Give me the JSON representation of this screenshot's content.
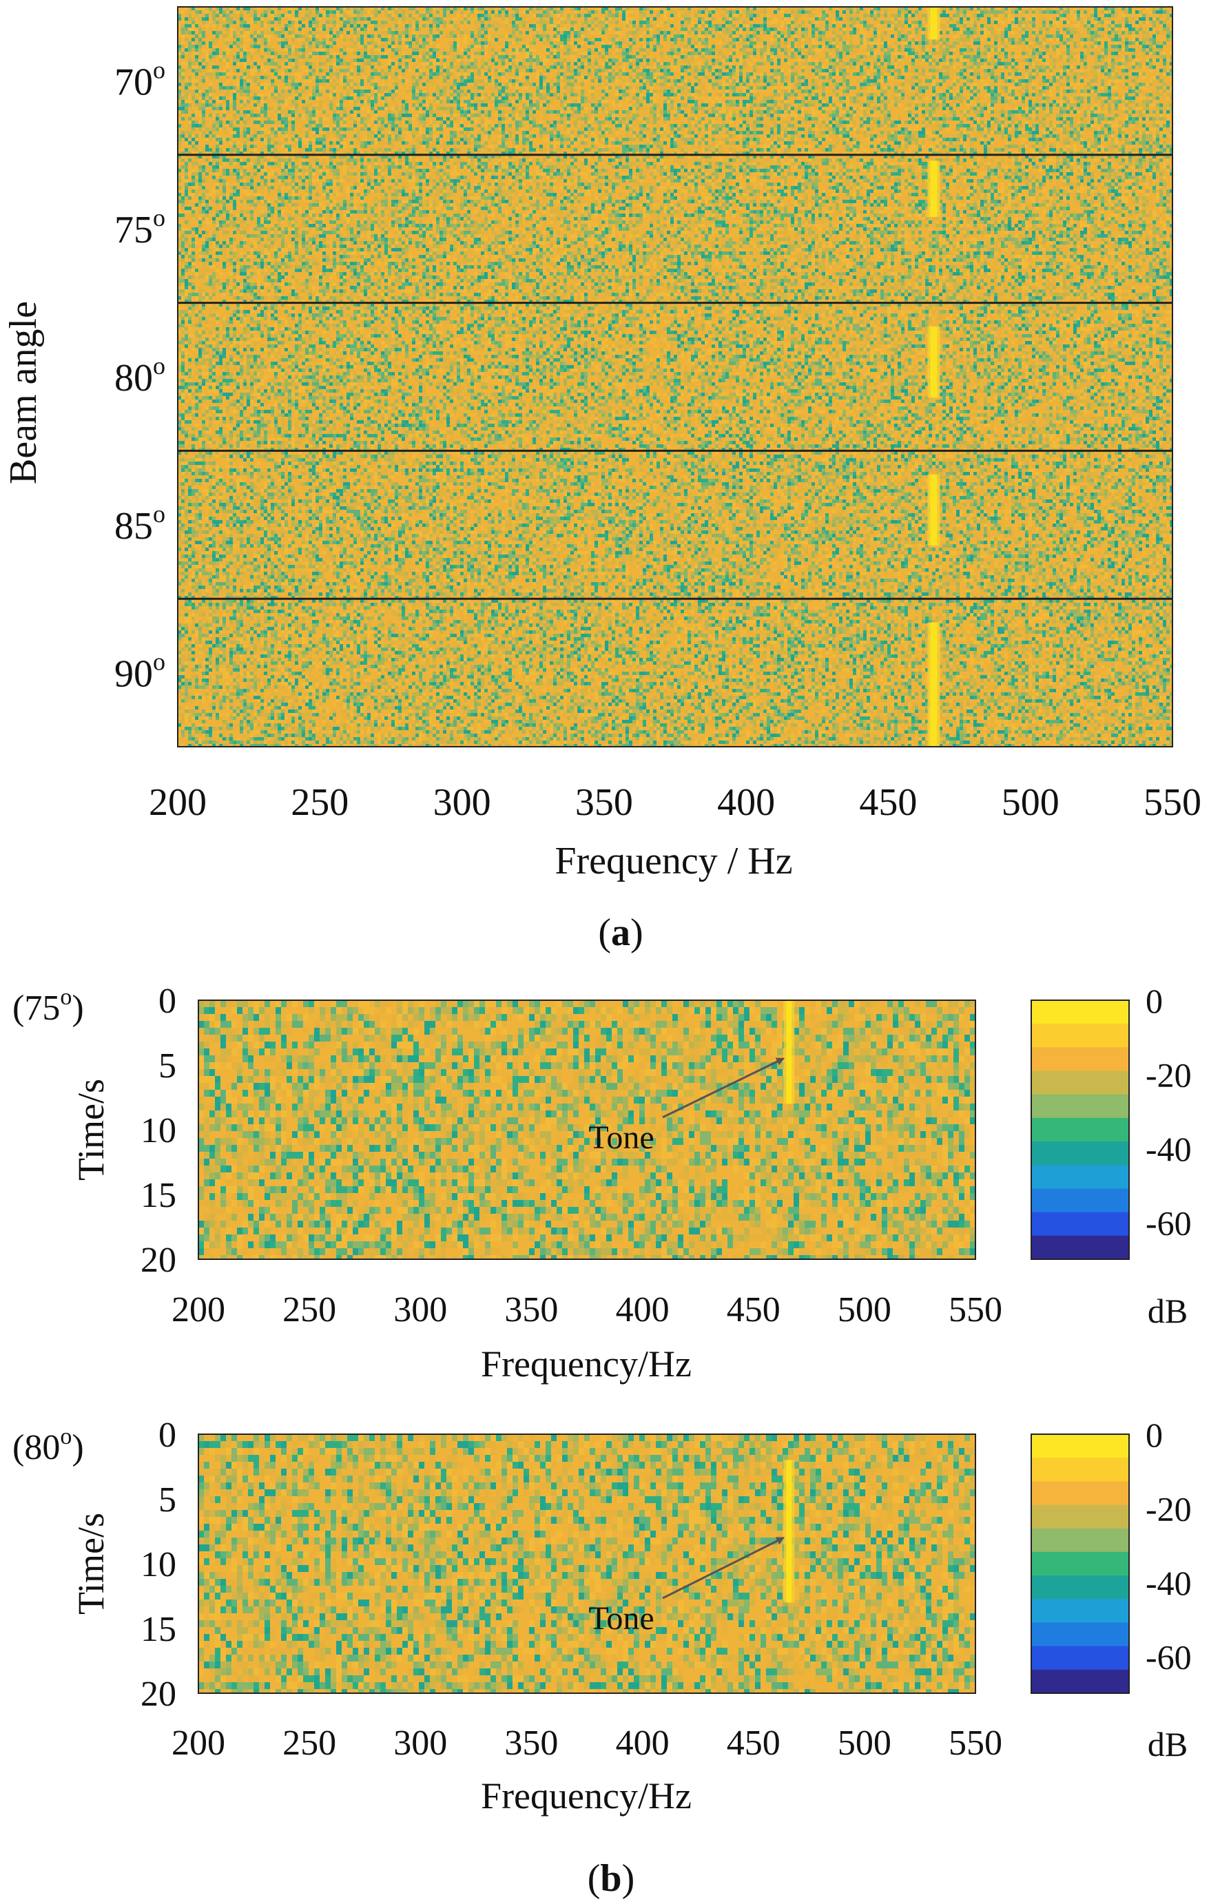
{
  "colors": {
    "noise": [
      "#f0b33a",
      "#e8b13b",
      "#d6b443",
      "#c0b44f",
      "#a6b55a",
      "#88b66a",
      "#5fb37a",
      "#2fae86",
      "#22a58f",
      "#f3ba3a"
    ],
    "tone": "#fbe21e",
    "tone_halo": "#f7cf30",
    "colorbar": [
      "#fde725",
      "#fbcd2f",
      "#f6b43c",
      "#c9b84e",
      "#8fbb6a",
      "#35b779",
      "#1ca49b",
      "#1ea0d6",
      "#1f7de0",
      "#2652e2",
      "#302a8f"
    ],
    "separator": "#222222",
    "arrow": "#555555"
  },
  "panel_a": {
    "label": "a",
    "chart_data": {
      "type": "heatmap",
      "title": "",
      "xlabel": "Frequency / Hz",
      "ylabel": "Beam angle",
      "xlim": [
        200,
        550
      ],
      "ylim": [
        67.5,
        92.5
      ],
      "x_ticks": [
        200,
        250,
        300,
        350,
        400,
        450,
        500,
        550
      ],
      "x_tick_labels": [
        "200",
        "250",
        "300",
        "350",
        "400",
        "450",
        "500",
        "550"
      ],
      "y_ticks": [
        70,
        75,
        80,
        85,
        90
      ],
      "y_tick_labels": [
        "70",
        "75",
        "80",
        "85",
        "90"
      ],
      "y_tick_suffix": "o",
      "band_separators": [
        72.5,
        77.5,
        82.5,
        87.5
      ],
      "tone_frequency": 466,
      "tone_segments": [
        [
          67.5,
          68.6
        ],
        [
          72.7,
          74.6
        ],
        [
          78.3,
          80.7
        ],
        [
          83.3,
          85.7
        ],
        [
          88.3,
          92.5
        ]
      ]
    }
  },
  "panel_b": {
    "label": "b",
    "plots": [
      {
        "angle_label": "(75",
        "angle_suffix": "o",
        "angle_close": ")",
        "annotation": "Tone",
        "chart_data": {
          "type": "heatmap",
          "title": "",
          "xlabel": "Frequency/Hz",
          "ylabel": "Time/s",
          "xlim": [
            200,
            550
          ],
          "ylim": [
            0,
            20
          ],
          "x_ticks": [
            200,
            250,
            300,
            350,
            400,
            450,
            500,
            550
          ],
          "x_tick_labels": [
            "200",
            "250",
            "300",
            "350",
            "400",
            "450",
            "500",
            "550"
          ],
          "y_ticks": [
            0,
            5,
            10,
            15,
            20
          ],
          "y_tick_labels": [
            "0",
            "5",
            "10",
            "15",
            "20"
          ],
          "tone_frequency": 466,
          "tone_time_range": [
            0,
            8
          ],
          "annotation_point": [
            466,
            4.5
          ],
          "colorbar": {
            "label": "dB",
            "range": [
              -70,
              0
            ],
            "ticks": [
              0,
              -20,
              -40,
              -60
            ],
            "tick_labels": [
              "0",
              "-20",
              "-40",
              "-60"
            ]
          }
        }
      },
      {
        "angle_label": "(80",
        "angle_suffix": "o",
        "angle_close": ")",
        "annotation": "Tone",
        "chart_data": {
          "type": "heatmap",
          "title": "",
          "xlabel": "Frequency/Hz",
          "ylabel": "Time/s",
          "xlim": [
            200,
            550
          ],
          "ylim": [
            0,
            20
          ],
          "x_ticks": [
            200,
            250,
            300,
            350,
            400,
            450,
            500,
            550
          ],
          "x_tick_labels": [
            "200",
            "250",
            "300",
            "350",
            "400",
            "450",
            "500",
            "550"
          ],
          "y_ticks": [
            0,
            5,
            10,
            15,
            20
          ],
          "y_tick_labels": [
            "0",
            "5",
            "10",
            "15",
            "20"
          ],
          "tone_frequency": 466,
          "tone_time_range": [
            2,
            13
          ],
          "annotation_point": [
            466,
            8
          ],
          "colorbar": {
            "label": "dB",
            "range": [
              -70,
              0
            ],
            "ticks": [
              0,
              -20,
              -40,
              -60
            ],
            "tick_labels": [
              "0",
              "-20",
              "-40",
              "-60"
            ]
          }
        }
      }
    ]
  }
}
